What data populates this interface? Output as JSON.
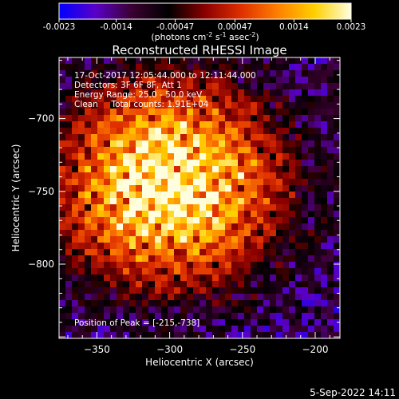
{
  "chart_data": {
    "type": "heatmap",
    "title": "Reconstructed RHESSI Image",
    "colorbar": {
      "ticks": [
        "-0.0023",
        "-0.0014",
        "-0.00047",
        "0.00047",
        "0.0014",
        "0.0023"
      ],
      "range": [
        -0.0023,
        0.0023
      ],
      "colormap": [
        "#0000ff",
        "#5a00c8",
        "#3a0030",
        "#000000",
        "#8a0000",
        "#e03000",
        "#ff8000",
        "#ffd000",
        "#ffffe0"
      ]
    },
    "colorbar_unit": {
      "prefix": "(photons cm",
      "sup1": "-2",
      "mid1": " s",
      "sup2": "-1",
      "mid2": " asec",
      "sup3": "-2",
      "suffix": ")"
    },
    "xlabel": "Heliocentric X (arcsec)",
    "ylabel": "Heliocentric Y (arcsec)",
    "xlim": [
      -376,
      -183
    ],
    "ylim": [
      -851,
      -658
    ],
    "xticks": [
      -350,
      -300,
      -250,
      -200
    ],
    "yticks": [
      -700,
      -750,
      -800
    ],
    "xtick_labels": [
      "−350",
      "−300",
      "−250",
      "−200"
    ],
    "ytick_labels": [
      "−700",
      "−750",
      "−800"
    ],
    "peak": [
      -215,
      -738
    ],
    "annotations": [
      "17-Oct-2017 12:05:44.000 to 12:11:44.000",
      "Detectors: 3F 6F 8F, Att 1",
      "Energy Range: 25.0 - 50.0 keV",
      "Clean     Total counts: 1.91E+04"
    ],
    "peak_label": "Position of Peak = [-215,-738]",
    "footer_date": "5-Sep-2022 14:11"
  },
  "colors": {
    "background": "#000000",
    "foreground": "#ffffff"
  }
}
